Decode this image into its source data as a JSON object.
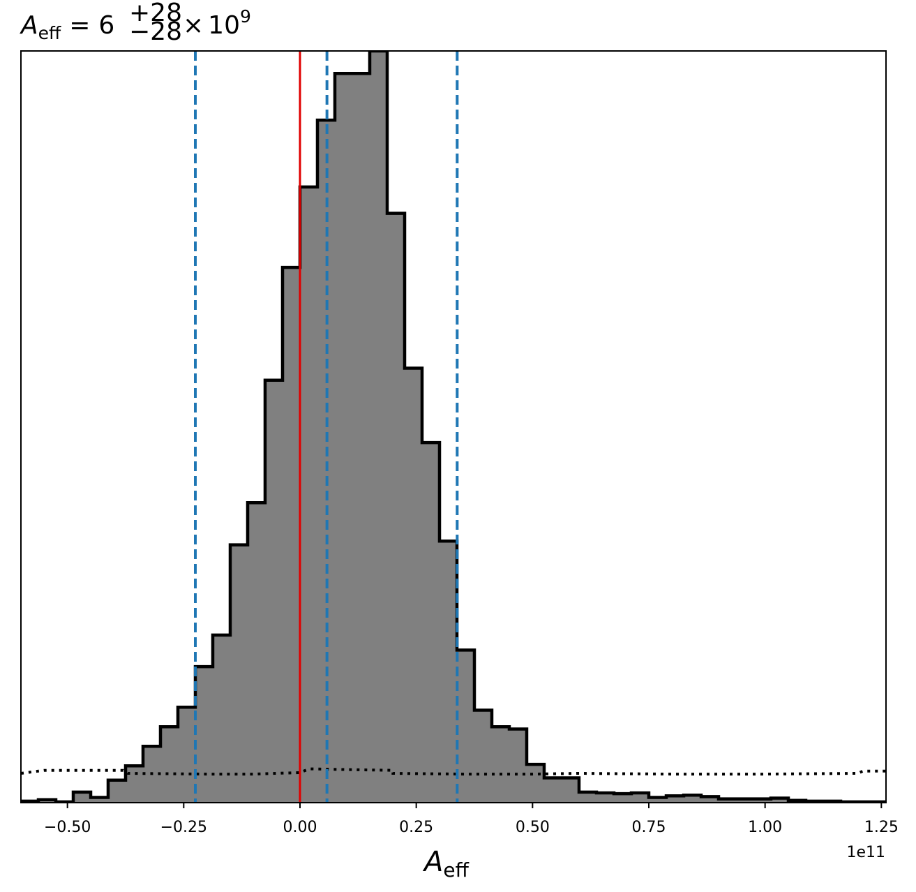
{
  "chart_data": {
    "type": "histogram",
    "title": {
      "symbol": "A",
      "subscript": "eff",
      "equals": "=",
      "median": "6",
      "upper": "+28",
      "lower": "−28",
      "times": "×",
      "base": "10",
      "exponent": "9"
    },
    "xlabel": {
      "symbol": "A",
      "subscript": "eff"
    },
    "x_offset_label": "1e11",
    "xlim": [
      -0.6,
      1.26
    ],
    "ylim": [
      0,
      1
    ],
    "x_ticks": [
      {
        "value": -0.5,
        "label": "−0.50"
      },
      {
        "value": -0.25,
        "label": "−0.25"
      },
      {
        "value": 0.0,
        "label": "0.00"
      },
      {
        "value": 0.25,
        "label": "0.25"
      },
      {
        "value": 0.5,
        "label": "0.50"
      },
      {
        "value": 0.75,
        "label": "0.75"
      },
      {
        "value": 1.0,
        "label": "1.00"
      },
      {
        "value": 1.25,
        "label": "1.25"
      }
    ],
    "y_ticks_shown": false,
    "grid": false,
    "histogram": {
      "fill_color": "#808080",
      "edge_color": "#000000",
      "bin_edges": [
        -0.6,
        -0.5625,
        -0.525,
        -0.4875,
        -0.45,
        -0.4125,
        -0.375,
        -0.3375,
        -0.3,
        -0.2625,
        -0.225,
        -0.1875,
        -0.15,
        -0.1125,
        -0.075,
        -0.0375,
        0.0,
        0.0375,
        0.075,
        0.1125,
        0.15,
        0.1875,
        0.225,
        0.2625,
        0.3,
        0.3375,
        0.375,
        0.4125,
        0.45,
        0.4875,
        0.525,
        0.5625,
        0.6,
        0.6375,
        0.675,
        0.7125,
        0.75,
        0.7875,
        0.825,
        0.8625,
        0.9,
        0.9375,
        0.975,
        1.0125,
        1.05,
        1.0875,
        1.125,
        1.1625,
        1.2,
        1.2375,
        1.26
      ],
      "heights": [
        0.002,
        0.004,
        0.001,
        0.014,
        0.007,
        0.03,
        0.049,
        0.075,
        0.101,
        0.127,
        0.181,
        0.223,
        0.343,
        0.399,
        0.562,
        0.712,
        0.819,
        0.908,
        0.97,
        0.97,
        1.0,
        0.784,
        0.578,
        0.479,
        0.348,
        0.203,
        0.123,
        0.101,
        0.098,
        0.051,
        0.033,
        0.033,
        0.014,
        0.013,
        0.012,
        0.013,
        0.007,
        0.009,
        0.01,
        0.008,
        0.005,
        0.005,
        0.005,
        0.006,
        0.003,
        0.002,
        0.002,
        0.001,
        0.001,
        0.001
      ]
    },
    "prior": {
      "style": "dotted",
      "color": "#000000",
      "points": [
        [
          -0.6,
          0.039
        ],
        [
          -0.55,
          0.043
        ],
        [
          -0.45,
          0.043
        ],
        [
          -0.38,
          0.043
        ],
        [
          -0.37,
          0.039
        ],
        [
          -0.2,
          0.038
        ],
        [
          -0.1,
          0.038
        ],
        [
          0.0,
          0.04
        ],
        [
          0.02,
          0.045
        ],
        [
          0.1,
          0.044
        ],
        [
          0.2,
          0.043
        ],
        [
          0.2,
          0.039
        ],
        [
          0.35,
          0.038
        ],
        [
          0.5,
          0.038
        ],
        [
          0.6,
          0.039
        ],
        [
          0.8,
          0.038
        ],
        [
          1.0,
          0.038
        ],
        [
          1.2,
          0.039
        ],
        [
          1.21,
          0.042
        ],
        [
          1.26,
          0.042
        ]
      ]
    },
    "truth_line": {
      "x": 0.0,
      "color": "#e00000"
    },
    "credible_lines": {
      "color": "#1f77b4",
      "style": "dashed",
      "x": [
        -0.225,
        0.058,
        0.338
      ]
    }
  }
}
